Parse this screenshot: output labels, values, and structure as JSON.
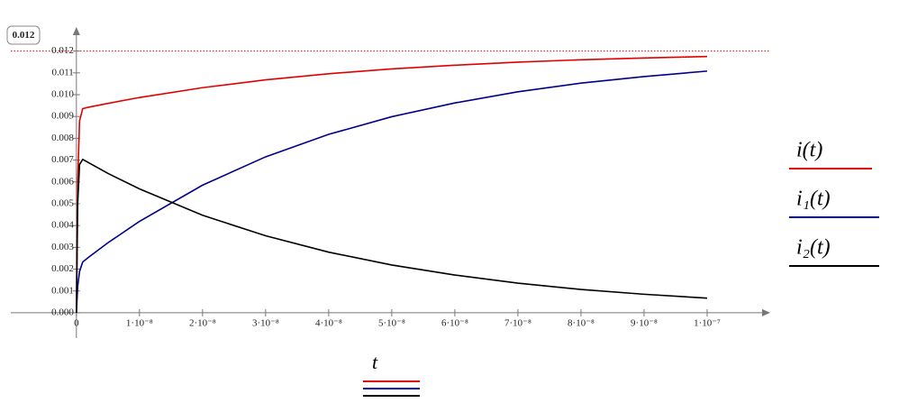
{
  "chart_data": {
    "type": "line",
    "x_label": "t",
    "x": [
      0,
      2e-10,
      5e-10,
      1e-09,
      2e-09,
      5e-09,
      1e-08,
      2e-08,
      3e-08,
      4e-08,
      5e-08,
      6e-08,
      7e-08,
      8e-08,
      9e-08,
      1e-07
    ],
    "series": [
      {
        "name": "i(t)",
        "color": "#e00000",
        "values": [
          0,
          0.006,
          0.0088,
          0.00936,
          0.00943,
          0.0096,
          0.00987,
          0.01032,
          0.01068,
          0.01096,
          0.01118,
          0.01135,
          0.01149,
          0.0116,
          0.01168,
          0.01175
        ]
      },
      {
        "name": "i₁(t)",
        "color": "#00008b",
        "values": [
          0,
          0.0012,
          0.0019,
          0.00233,
          0.00256,
          0.00321,
          0.00419,
          0.00585,
          0.00715,
          0.00818,
          0.00899,
          0.00962,
          0.01013,
          0.01053,
          0.01083,
          0.01108
        ]
      },
      {
        "name": "i₂(t)",
        "color": "#000000",
        "values": [
          0,
          0.005,
          0.0068,
          0.00703,
          0.00687,
          0.00639,
          0.00568,
          0.00447,
          0.00353,
          0.00278,
          0.00219,
          0.00173,
          0.00136,
          0.00107,
          0.00085,
          0.00067
        ]
      }
    ],
    "xlim": [
      -1.04e-08,
      1.1e-07
    ],
    "ylim": [
      -0.00116,
      0.0131
    ],
    "xticks": [
      0,
      {
        "value": 1e-08,
        "label": "1·10⁻⁸"
      },
      {
        "value": 2e-08,
        "label": "2·10⁻⁸"
      },
      {
        "value": 3e-08,
        "label": "3·10⁻⁸"
      },
      {
        "value": 4e-08,
        "label": "4·10⁻⁸"
      },
      {
        "value": 5e-08,
        "label": "5·10⁻⁸"
      },
      {
        "value": 6e-08,
        "label": "6·10⁻⁸"
      },
      {
        "value": 7e-08,
        "label": "7·10⁻⁸"
      },
      {
        "value": 8e-08,
        "label": "8·10⁻⁸"
      },
      {
        "value": 9e-08,
        "label": "9·10⁻⁸"
      },
      {
        "value": 1e-07,
        "label": "1·10⁻⁷"
      }
    ],
    "yticks": [
      {
        "value": 0,
        "label": "0.000"
      },
      0.001,
      0.002,
      0.003,
      0.004,
      0.005,
      0.006,
      0.007,
      0.008,
      0.009,
      {
        "value": 0.01,
        "label": "0.010"
      },
      0.011,
      0.012
    ],
    "marker_line": 0.012,
    "marker_color": "#e00000"
  }
}
